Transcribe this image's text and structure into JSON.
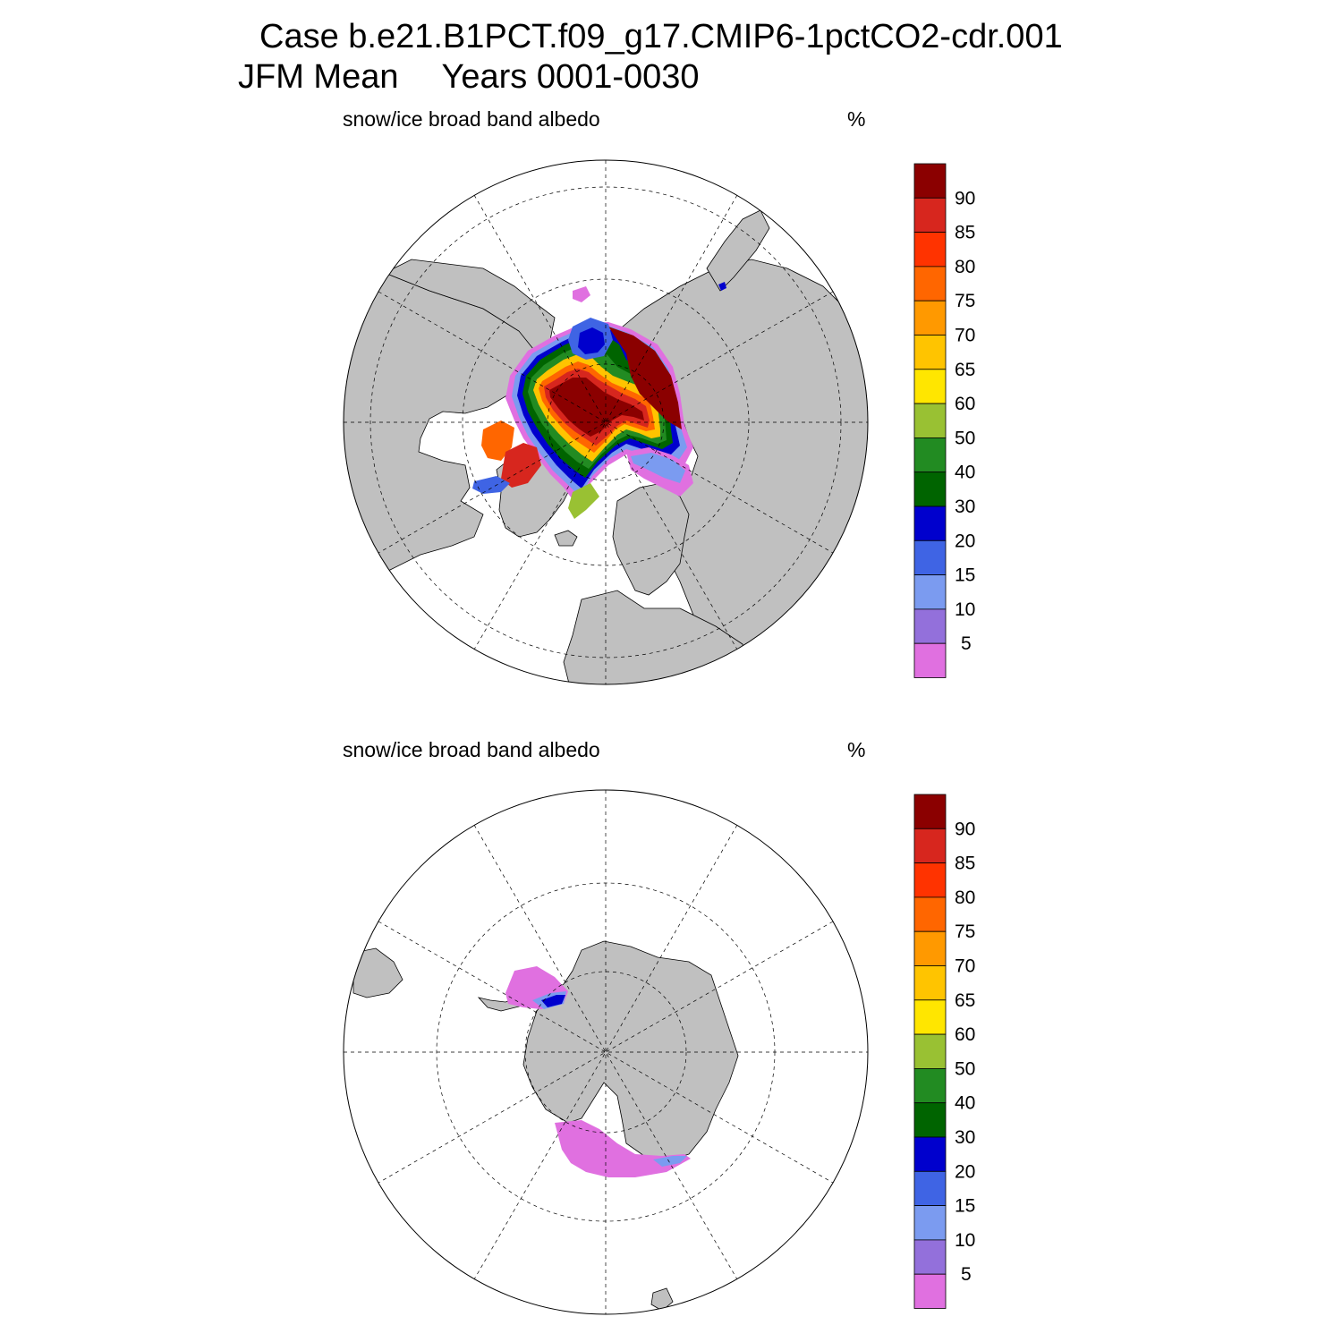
{
  "title": {
    "line1": "Case b.e21.B1PCT.f09_g17.CMIP6-1pctCO2-cdr.001",
    "season": "JFM Mean",
    "years": "Years 0001-0030"
  },
  "panels": [
    {
      "id": "north",
      "variable": "snow/ice broad band albedo",
      "units": "%"
    },
    {
      "id": "south",
      "variable": "snow/ice broad band albedo",
      "units": "%"
    }
  ],
  "colorbar": {
    "levels": [
      "90",
      "85",
      "80",
      "75",
      "70",
      "65",
      "60",
      "50",
      "40",
      "30",
      "20",
      "15",
      "10",
      "5"
    ],
    "colors": [
      "#8b0000",
      "#d7261e",
      "#ff3300",
      "#ff6600",
      "#ff9900",
      "#ffc400",
      "#ffe600",
      "#99c133",
      "#228b22",
      "#006400",
      "#0000cd",
      "#3f64e4",
      "#7b9bf0",
      "#9370db",
      "#e070e0"
    ]
  },
  "colors": {
    "land": "#c0c0c0",
    "coast": "#000000",
    "grid": "#000000"
  }
}
